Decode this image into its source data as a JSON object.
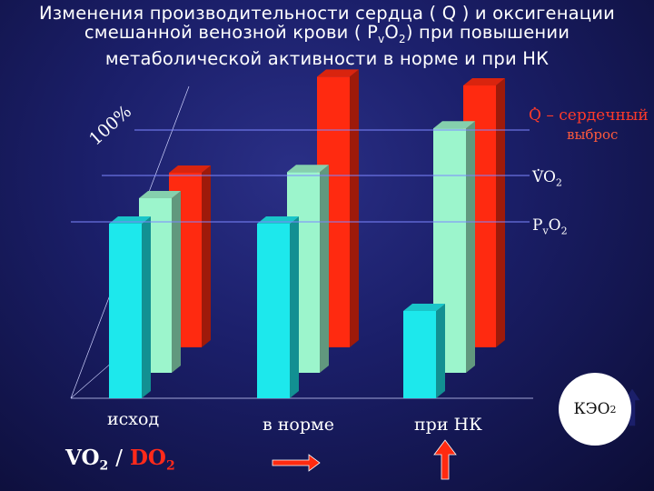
{
  "title": {
    "line1": "Изменения производительности сердца ( Q ) и оксигенации",
    "line2a": "смешанной венозной крови ( P",
    "line2sub": "v",
    "line2b": "O",
    "line2sub2": "2",
    "line2c": ") при повышении",
    "line3": "метаболической активности в норме и при НК"
  },
  "axis_label": "100%",
  "legend": {
    "q_symbol": "Q",
    "q_text": " – сердечный",
    "q_text2": "выброс",
    "vo2_main": "VO",
    "vo2_sub": "2",
    "pvo2_main": "P",
    "pvo2_sub": "v",
    "pvo2_main2": "O",
    "pvo2_sub2": "2"
  },
  "ratio": {
    "vo2": "VO",
    "vo2_sub": "2",
    "slash": "/",
    "do2": "DO",
    "do2_sub": "2"
  },
  "keo": {
    "main": "КЭО",
    "sub": "2"
  },
  "colors": {
    "q": "#ff2a10",
    "vo2": "#9cf5cc",
    "pvo2": "#1de8ec",
    "arrow": "#ff2a10"
  },
  "chart_data": {
    "type": "bar",
    "categories": [
      "исход",
      "в норме",
      "при НК"
    ],
    "series": [
      {
        "name": "Q – сердечный выброс",
        "values": [
          100,
          155,
          150
        ]
      },
      {
        "name": "VO2",
        "values": [
          100,
          115,
          140
        ]
      },
      {
        "name": "PvO2",
        "values": [
          100,
          100,
          50
        ]
      }
    ],
    "ylim": [
      0,
      160
    ]
  }
}
